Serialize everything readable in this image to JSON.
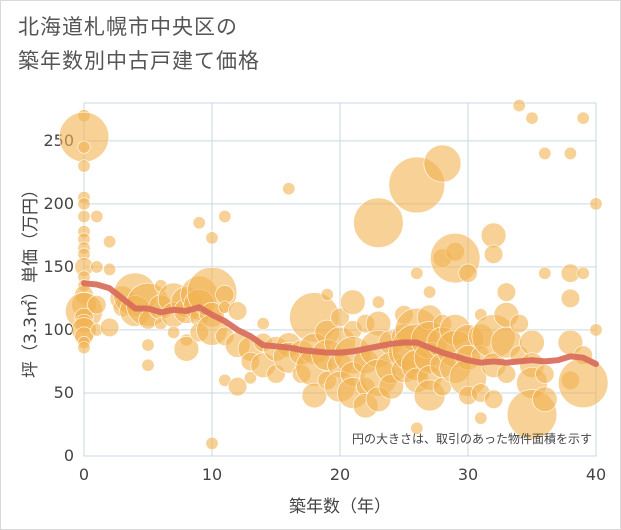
{
  "title_lines": [
    "北海道札幌市中央区の",
    "築年数別中古戸建て価格"
  ],
  "chart_data": {
    "type": "scatter",
    "title": "北海道札幌市中央区の築年数別中古戸建て価格",
    "xlabel": "築年数（年）",
    "ylabel": "坪（3.3㎡）単価（万円）",
    "xlim": [
      0,
      40
    ],
    "ylim": [
      0,
      280
    ],
    "x_ticks": [
      0,
      10,
      20,
      30,
      40
    ],
    "y_ticks": [
      0,
      50,
      100,
      150,
      200,
      250
    ],
    "grid": true,
    "note": "円の大きさは、取引のあった物件面積を示す",
    "colors": {
      "bubble": "#f2b250",
      "trend": "#d86b5a",
      "grid": "#c9d7e3"
    },
    "series": [
      {
        "kind": "bubbles",
        "points": [
          [
            0,
            270,
            2
          ],
          [
            0,
            253,
            8
          ],
          [
            0,
            245,
            2
          ],
          [
            0,
            230,
            2
          ],
          [
            0,
            205,
            2
          ],
          [
            0,
            200,
            2
          ],
          [
            0,
            190,
            2
          ],
          [
            0,
            178,
            2
          ],
          [
            0,
            172,
            2
          ],
          [
            0,
            165,
            2
          ],
          [
            0,
            160,
            2
          ],
          [
            0,
            150,
            3
          ],
          [
            0,
            142,
            2
          ],
          [
            0,
            135,
            2
          ],
          [
            0,
            128,
            3
          ],
          [
            0,
            120,
            4
          ],
          [
            0,
            115,
            6
          ],
          [
            0,
            110,
            3
          ],
          [
            0,
            105,
            3
          ],
          [
            0,
            100,
            4
          ],
          [
            0,
            95,
            3
          ],
          [
            0,
            90,
            2
          ],
          [
            0,
            86,
            2
          ],
          [
            1,
            190,
            2
          ],
          [
            1,
            150,
            2
          ],
          [
            1,
            120,
            3
          ],
          [
            1,
            100,
            2
          ],
          [
            2,
            170,
            2
          ],
          [
            2,
            148,
            2
          ],
          [
            2,
            102,
            3
          ],
          [
            3,
            125,
            4
          ],
          [
            3,
            118,
            3
          ],
          [
            4,
            128,
            7
          ],
          [
            4,
            115,
            5
          ],
          [
            5,
            120,
            7
          ],
          [
            5,
            108,
            3
          ],
          [
            5,
            88,
            2
          ],
          [
            5,
            72,
            2
          ],
          [
            6,
            135,
            2
          ],
          [
            6,
            118,
            4
          ],
          [
            6,
            105,
            2
          ],
          [
            7,
            125,
            5
          ],
          [
            7,
            112,
            4
          ],
          [
            7,
            98,
            2
          ],
          [
            8,
            122,
            5
          ],
          [
            8,
            115,
            4
          ],
          [
            8,
            92,
            2
          ],
          [
            8,
            85,
            4
          ],
          [
            9,
            185,
            2
          ],
          [
            9,
            128,
            6
          ],
          [
            9,
            120,
            5
          ],
          [
            9,
            110,
            3
          ],
          [
            9,
            98,
            3
          ],
          [
            10,
            130,
            8
          ],
          [
            10,
            112,
            4
          ],
          [
            10,
            100,
            5
          ],
          [
            10,
            173,
            2
          ],
          [
            10,
            10,
            2
          ],
          [
            11,
            190,
            2
          ],
          [
            11,
            128,
            3
          ],
          [
            11,
            118,
            2
          ],
          [
            11,
            95,
            3
          ],
          [
            11,
            60,
            2
          ],
          [
            12,
            115,
            3
          ],
          [
            12,
            88,
            4
          ],
          [
            12,
            55,
            3
          ],
          [
            13,
            85,
            4
          ],
          [
            13,
            75,
            3
          ],
          [
            13,
            62,
            2
          ],
          [
            14,
            105,
            2
          ],
          [
            14,
            90,
            3
          ],
          [
            14,
            72,
            4
          ],
          [
            15,
            85,
            4
          ],
          [
            15,
            65,
            3
          ],
          [
            16,
            212,
            2
          ],
          [
            16,
            88,
            4
          ],
          [
            16,
            78,
            5
          ],
          [
            17,
            82,
            4
          ],
          [
            17,
            65,
            3
          ],
          [
            18,
            110,
            8
          ],
          [
            18,
            85,
            5
          ],
          [
            18,
            70,
            6
          ],
          [
            18,
            48,
            4
          ],
          [
            19,
            128,
            2
          ],
          [
            19,
            98,
            4
          ],
          [
            19,
            80,
            5
          ],
          [
            19,
            60,
            3
          ],
          [
            20,
            110,
            3
          ],
          [
            20,
            90,
            5
          ],
          [
            20,
            72,
            4
          ],
          [
            20,
            55,
            5
          ],
          [
            21,
            122,
            4
          ],
          [
            21,
            100,
            3
          ],
          [
            21,
            80,
            6
          ],
          [
            21,
            65,
            4
          ],
          [
            21,
            50,
            5
          ],
          [
            22,
            105,
            3
          ],
          [
            22,
            75,
            4
          ],
          [
            22,
            55,
            3
          ],
          [
            22,
            40,
            4
          ],
          [
            23,
            185,
            8
          ],
          [
            23,
            122,
            2
          ],
          [
            23,
            105,
            4
          ],
          [
            23,
            85,
            6
          ],
          [
            23,
            62,
            6
          ],
          [
            23,
            45,
            4
          ],
          [
            24,
            90,
            4
          ],
          [
            24,
            70,
            5
          ],
          [
            24,
            55,
            4
          ],
          [
            25,
            112,
            3
          ],
          [
            25,
            95,
            4
          ],
          [
            25,
            82,
            5
          ],
          [
            25,
            68,
            4
          ],
          [
            26,
            215,
            9
          ],
          [
            26,
            145,
            2
          ],
          [
            26,
            100,
            7
          ],
          [
            26,
            85,
            8
          ],
          [
            26,
            72,
            5
          ],
          [
            26,
            60,
            4
          ],
          [
            26,
            22,
            2
          ],
          [
            27,
            130,
            2
          ],
          [
            27,
            110,
            4
          ],
          [
            27,
            92,
            6
          ],
          [
            27,
            78,
            5
          ],
          [
            27,
            62,
            4
          ],
          [
            27,
            48,
            5
          ],
          [
            28,
            232,
            6
          ],
          [
            28,
            157,
            3
          ],
          [
            28,
            105,
            3
          ],
          [
            28,
            90,
            5
          ],
          [
            28,
            72,
            4
          ],
          [
            28,
            55,
            3
          ],
          [
            29,
            162,
            3
          ],
          [
            29,
            157,
            8
          ],
          [
            29,
            100,
            5
          ],
          [
            29,
            85,
            6
          ],
          [
            29,
            70,
            5
          ],
          [
            30,
            145,
            3
          ],
          [
            30,
            92,
            5
          ],
          [
            30,
            78,
            4
          ],
          [
            30,
            62,
            6
          ],
          [
            30,
            48,
            3
          ],
          [
            31,
            112,
            2
          ],
          [
            31,
            95,
            4
          ],
          [
            31,
            80,
            3
          ],
          [
            31,
            50,
            3
          ],
          [
            31,
            30,
            2
          ],
          [
            32,
            175,
            4
          ],
          [
            32,
            160,
            3
          ],
          [
            32,
            95,
            7
          ],
          [
            32,
            72,
            4
          ],
          [
            32,
            45,
            3
          ],
          [
            33,
            130,
            3
          ],
          [
            33,
            112,
            4
          ],
          [
            33,
            90,
            5
          ],
          [
            33,
            65,
            3
          ],
          [
            34,
            278,
            2
          ],
          [
            34,
            105,
            3
          ],
          [
            34,
            80,
            3
          ],
          [
            35,
            268,
            2
          ],
          [
            35,
            90,
            4
          ],
          [
            35,
            72,
            4
          ],
          [
            35,
            58,
            5
          ],
          [
            35,
            33,
            8
          ],
          [
            36,
            240,
            2
          ],
          [
            36,
            145,
            2
          ],
          [
            36,
            65,
            3
          ],
          [
            36,
            45,
            4
          ],
          [
            38,
            240,
            2
          ],
          [
            38,
            145,
            3
          ],
          [
            38,
            125,
            3
          ],
          [
            38,
            90,
            4
          ],
          [
            38,
            60,
            3
          ],
          [
            39,
            268,
            2
          ],
          [
            39,
            145,
            2
          ],
          [
            39,
            80,
            3
          ],
          [
            39,
            58,
            8
          ],
          [
            40,
            200,
            2
          ],
          [
            40,
            100,
            2
          ]
        ]
      },
      {
        "kind": "line",
        "points": [
          [
            0,
            137
          ],
          [
            1,
            136
          ],
          [
            2,
            133
          ],
          [
            3,
            125
          ],
          [
            4,
            117
          ],
          [
            5,
            117
          ],
          [
            6,
            114
          ],
          [
            7,
            116
          ],
          [
            8,
            115
          ],
          [
            9,
            118
          ],
          [
            10,
            112
          ],
          [
            11,
            107
          ],
          [
            12,
            100
          ],
          [
            13,
            95
          ],
          [
            14,
            88
          ],
          [
            15,
            87
          ],
          [
            16,
            86
          ],
          [
            17,
            84
          ],
          [
            18,
            83
          ],
          [
            19,
            82
          ],
          [
            20,
            82
          ],
          [
            21,
            83
          ],
          [
            22,
            85
          ],
          [
            23,
            87
          ],
          [
            24,
            89
          ],
          [
            25,
            90
          ],
          [
            26,
            90
          ],
          [
            27,
            86
          ],
          [
            28,
            82
          ],
          [
            29,
            79
          ],
          [
            30,
            76
          ],
          [
            31,
            74
          ],
          [
            32,
            75
          ],
          [
            33,
            74
          ],
          [
            34,
            75
          ],
          [
            35,
            76
          ],
          [
            36,
            75
          ],
          [
            37,
            76
          ],
          [
            38,
            79
          ],
          [
            39,
            78
          ],
          [
            40,
            73
          ]
        ]
      }
    ]
  }
}
